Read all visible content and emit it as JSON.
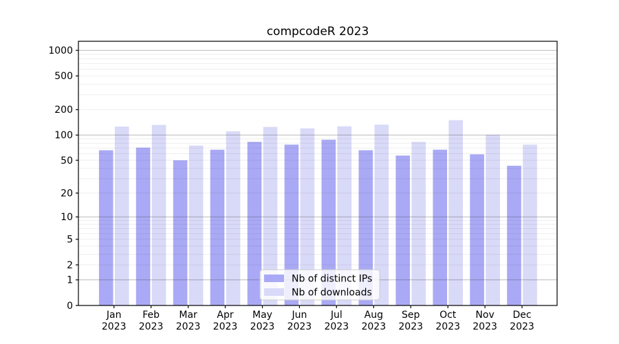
{
  "figure": {
    "background": "#ffffff"
  },
  "chart_data": {
    "type": "bar",
    "title": "compcodeR 2023",
    "categories": [
      "Jan",
      "Feb",
      "Mar",
      "Apr",
      "May",
      "Jun",
      "Jul",
      "Aug",
      "Sep",
      "Oct",
      "Nov",
      "Dec"
    ],
    "category_year": "2023",
    "series": [
      {
        "name": "Nb of distinct IPs",
        "color": "#a9a9f5",
        "values": [
          66,
          71,
          50,
          67,
          83,
          77,
          88,
          66,
          57,
          67,
          59,
          43
        ]
      },
      {
        "name": "Nb of downloads",
        "color": "#d9d9f8",
        "values": [
          126,
          132,
          75,
          111,
          125,
          120,
          127,
          133,
          83,
          150,
          101,
          77
        ]
      }
    ],
    "xlabel": "",
    "ylabel": "",
    "yscale": "log1p",
    "ylim": [
      0,
      1280
    ],
    "y_ticks": [
      0,
      1,
      2,
      5,
      10,
      20,
      50,
      100,
      200,
      500,
      1000
    ],
    "y_major_gridlines": [
      1,
      10,
      100,
      1000
    ],
    "grid": "both",
    "legend_position": "lower center"
  }
}
